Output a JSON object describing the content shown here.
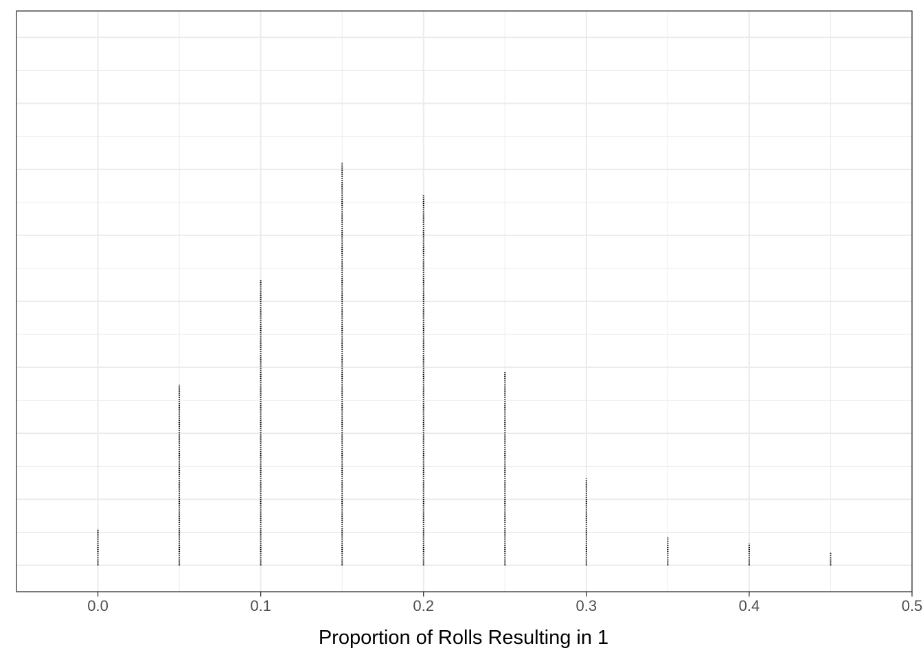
{
  "chart_data": {
    "type": "bar",
    "title": "",
    "xlabel": "Proportion of Rolls Resulting in 1",
    "ylabel": "",
    "x_ticks": [
      "0.0",
      "0.1",
      "0.2",
      "0.3",
      "0.4",
      "0.5"
    ],
    "x_tick_values": [
      0.0,
      0.1,
      0.2,
      0.3,
      0.4,
      0.5
    ],
    "xlim": [
      -0.05,
      0.5
    ],
    "ylim": [
      -0.04,
      0.84
    ],
    "y_gridlines": [
      0.0,
      0.1,
      0.2,
      0.3,
      0.4,
      0.5,
      0.6,
      0.7,
      0.8
    ],
    "grid": true,
    "legend": "none",
    "bar_style": "dotted vertical lines",
    "colors": {
      "bars": "#000000",
      "grid": "#ebebeb",
      "panel_border": "#333333",
      "tick_text": "#4d4d4d"
    },
    "x": [
      0.0,
      0.05,
      0.1,
      0.15,
      0.2,
      0.25,
      0.3,
      0.35,
      0.4,
      0.45
    ],
    "values": [
      0.054,
      0.274,
      0.432,
      0.61,
      0.561,
      0.294,
      0.132,
      0.042,
      0.033,
      0.019
    ]
  }
}
